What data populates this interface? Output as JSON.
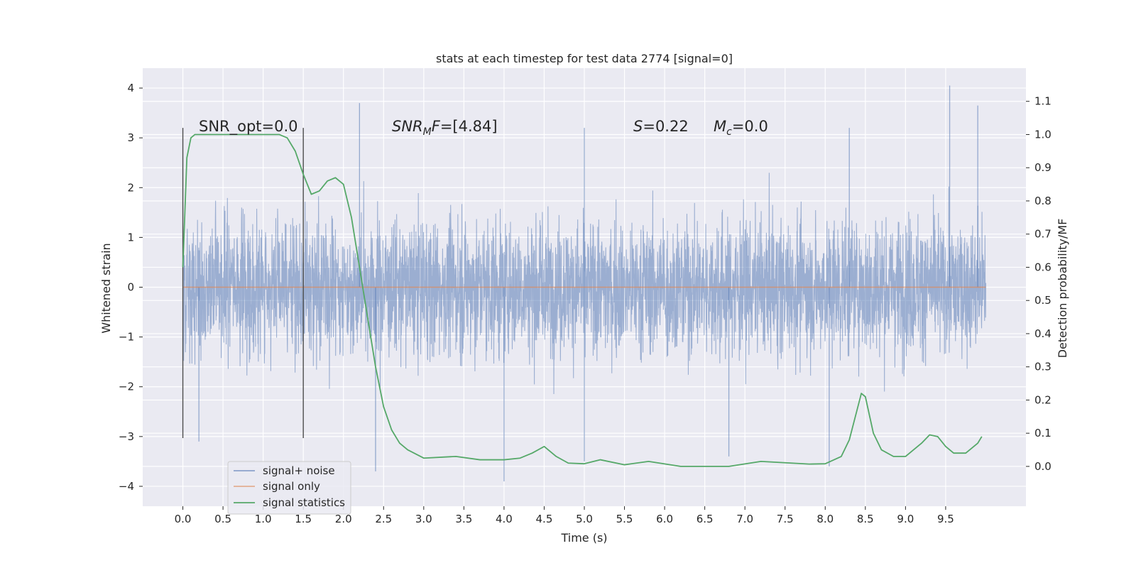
{
  "chart_data": {
    "type": "line",
    "title": "stats at each timestep for test data 2774 [signal=0]",
    "xlabel": "Time (s)",
    "ylabel": "Whitened strain",
    "y2label": "Detection probability/MF",
    "xlim": [
      -0.5,
      10.5
    ],
    "ylim": [
      -4.4,
      4.4
    ],
    "y2lim": [
      -0.12,
      1.2
    ],
    "x_ticks": [
      "0.0",
      "0.5",
      "1.0",
      "1.5",
      "2.0",
      "2.5",
      "3.0",
      "3.5",
      "4.0",
      "4.5",
      "5.0",
      "5.5",
      "6.0",
      "6.5",
      "7.0",
      "7.5",
      "8.0",
      "8.5",
      "9.0",
      "9.5"
    ],
    "y_ticks": [
      "4",
      "3",
      "2",
      "1",
      "0",
      "−1",
      "−2",
      "−3",
      "−4"
    ],
    "y2_ticks": [
      "1.1",
      "1.0",
      "0.9",
      "0.8",
      "0.7",
      "0.6",
      "0.5",
      "0.4",
      "0.3",
      "0.2",
      "0.1",
      "0.0"
    ],
    "grid": true,
    "legend_position": "lower-left",
    "annotations": {
      "snr_opt": "SNR_opt=0.0",
      "snr_mf": "=[4.84]",
      "snr_mf_sym": "SNR",
      "snr_mf_sub": "M",
      "snr_mf_f": "F",
      "s_sym": "S",
      "s_val": "=0.22",
      "mc_sym": "M",
      "mc_sub": "c",
      "mc_val": "=0.0"
    },
    "markers_x": [
      0.0,
      1.5
    ],
    "series": [
      {
        "name": "signal+ noise",
        "color": "#4c72b0",
        "style": "dense noise, envelope approximately ±2.7",
        "x_range": [
          0.0,
          10.0
        ],
        "spikes": [
          {
            "x": 0.2,
            "y": -3.1
          },
          {
            "x": 2.2,
            "y": 3.7
          },
          {
            "x": 2.4,
            "y": -3.7
          },
          {
            "x": 4.0,
            "y": -3.9
          },
          {
            "x": 5.0,
            "y": -3.5
          },
          {
            "x": 5.0,
            "y": 3.2
          },
          {
            "x": 8.05,
            "y": -3.6
          },
          {
            "x": 8.3,
            "y": 3.2
          },
          {
            "x": 9.55,
            "y": 4.05
          },
          {
            "x": 9.9,
            "y": 3.65
          },
          {
            "x": 6.8,
            "y": -3.4
          }
        ]
      },
      {
        "name": "signal only",
        "color": "#dd8452",
        "x": [
          0.0,
          10.0
        ],
        "y": [
          0.0,
          0.0
        ]
      },
      {
        "name": "signal statistics",
        "color": "#55a868",
        "axis": "right",
        "x": [
          0.0,
          0.05,
          0.1,
          0.15,
          0.25,
          0.5,
          0.8,
          1.0,
          1.2,
          1.3,
          1.4,
          1.5,
          1.6,
          1.7,
          1.8,
          1.9,
          2.0,
          2.1,
          2.2,
          2.3,
          2.4,
          2.5,
          2.6,
          2.7,
          2.8,
          3.0,
          3.4,
          3.7,
          4.0,
          4.2,
          4.35,
          4.5,
          4.65,
          4.8,
          5.0,
          5.2,
          5.5,
          5.8,
          6.2,
          6.8,
          7.2,
          7.8,
          8.0,
          8.2,
          8.3,
          8.45,
          8.5,
          8.6,
          8.7,
          8.85,
          9.0,
          9.2,
          9.3,
          9.4,
          9.5,
          9.6,
          9.75,
          9.9,
          9.95
        ],
        "y": [
          0.6,
          0.93,
          0.99,
          1.0,
          1.0,
          1.0,
          1.0,
          1.0,
          1.0,
          0.99,
          0.95,
          0.88,
          0.82,
          0.83,
          0.86,
          0.87,
          0.85,
          0.75,
          0.6,
          0.45,
          0.3,
          0.18,
          0.11,
          0.07,
          0.05,
          0.025,
          0.03,
          0.02,
          0.02,
          0.025,
          0.04,
          0.06,
          0.03,
          0.01,
          0.008,
          0.02,
          0.005,
          0.015,
          0.0,
          0.0,
          0.015,
          0.007,
          0.008,
          0.03,
          0.08,
          0.22,
          0.21,
          0.1,
          0.05,
          0.03,
          0.03,
          0.07,
          0.095,
          0.09,
          0.06,
          0.04,
          0.04,
          0.07,
          0.09
        ]
      }
    ]
  }
}
